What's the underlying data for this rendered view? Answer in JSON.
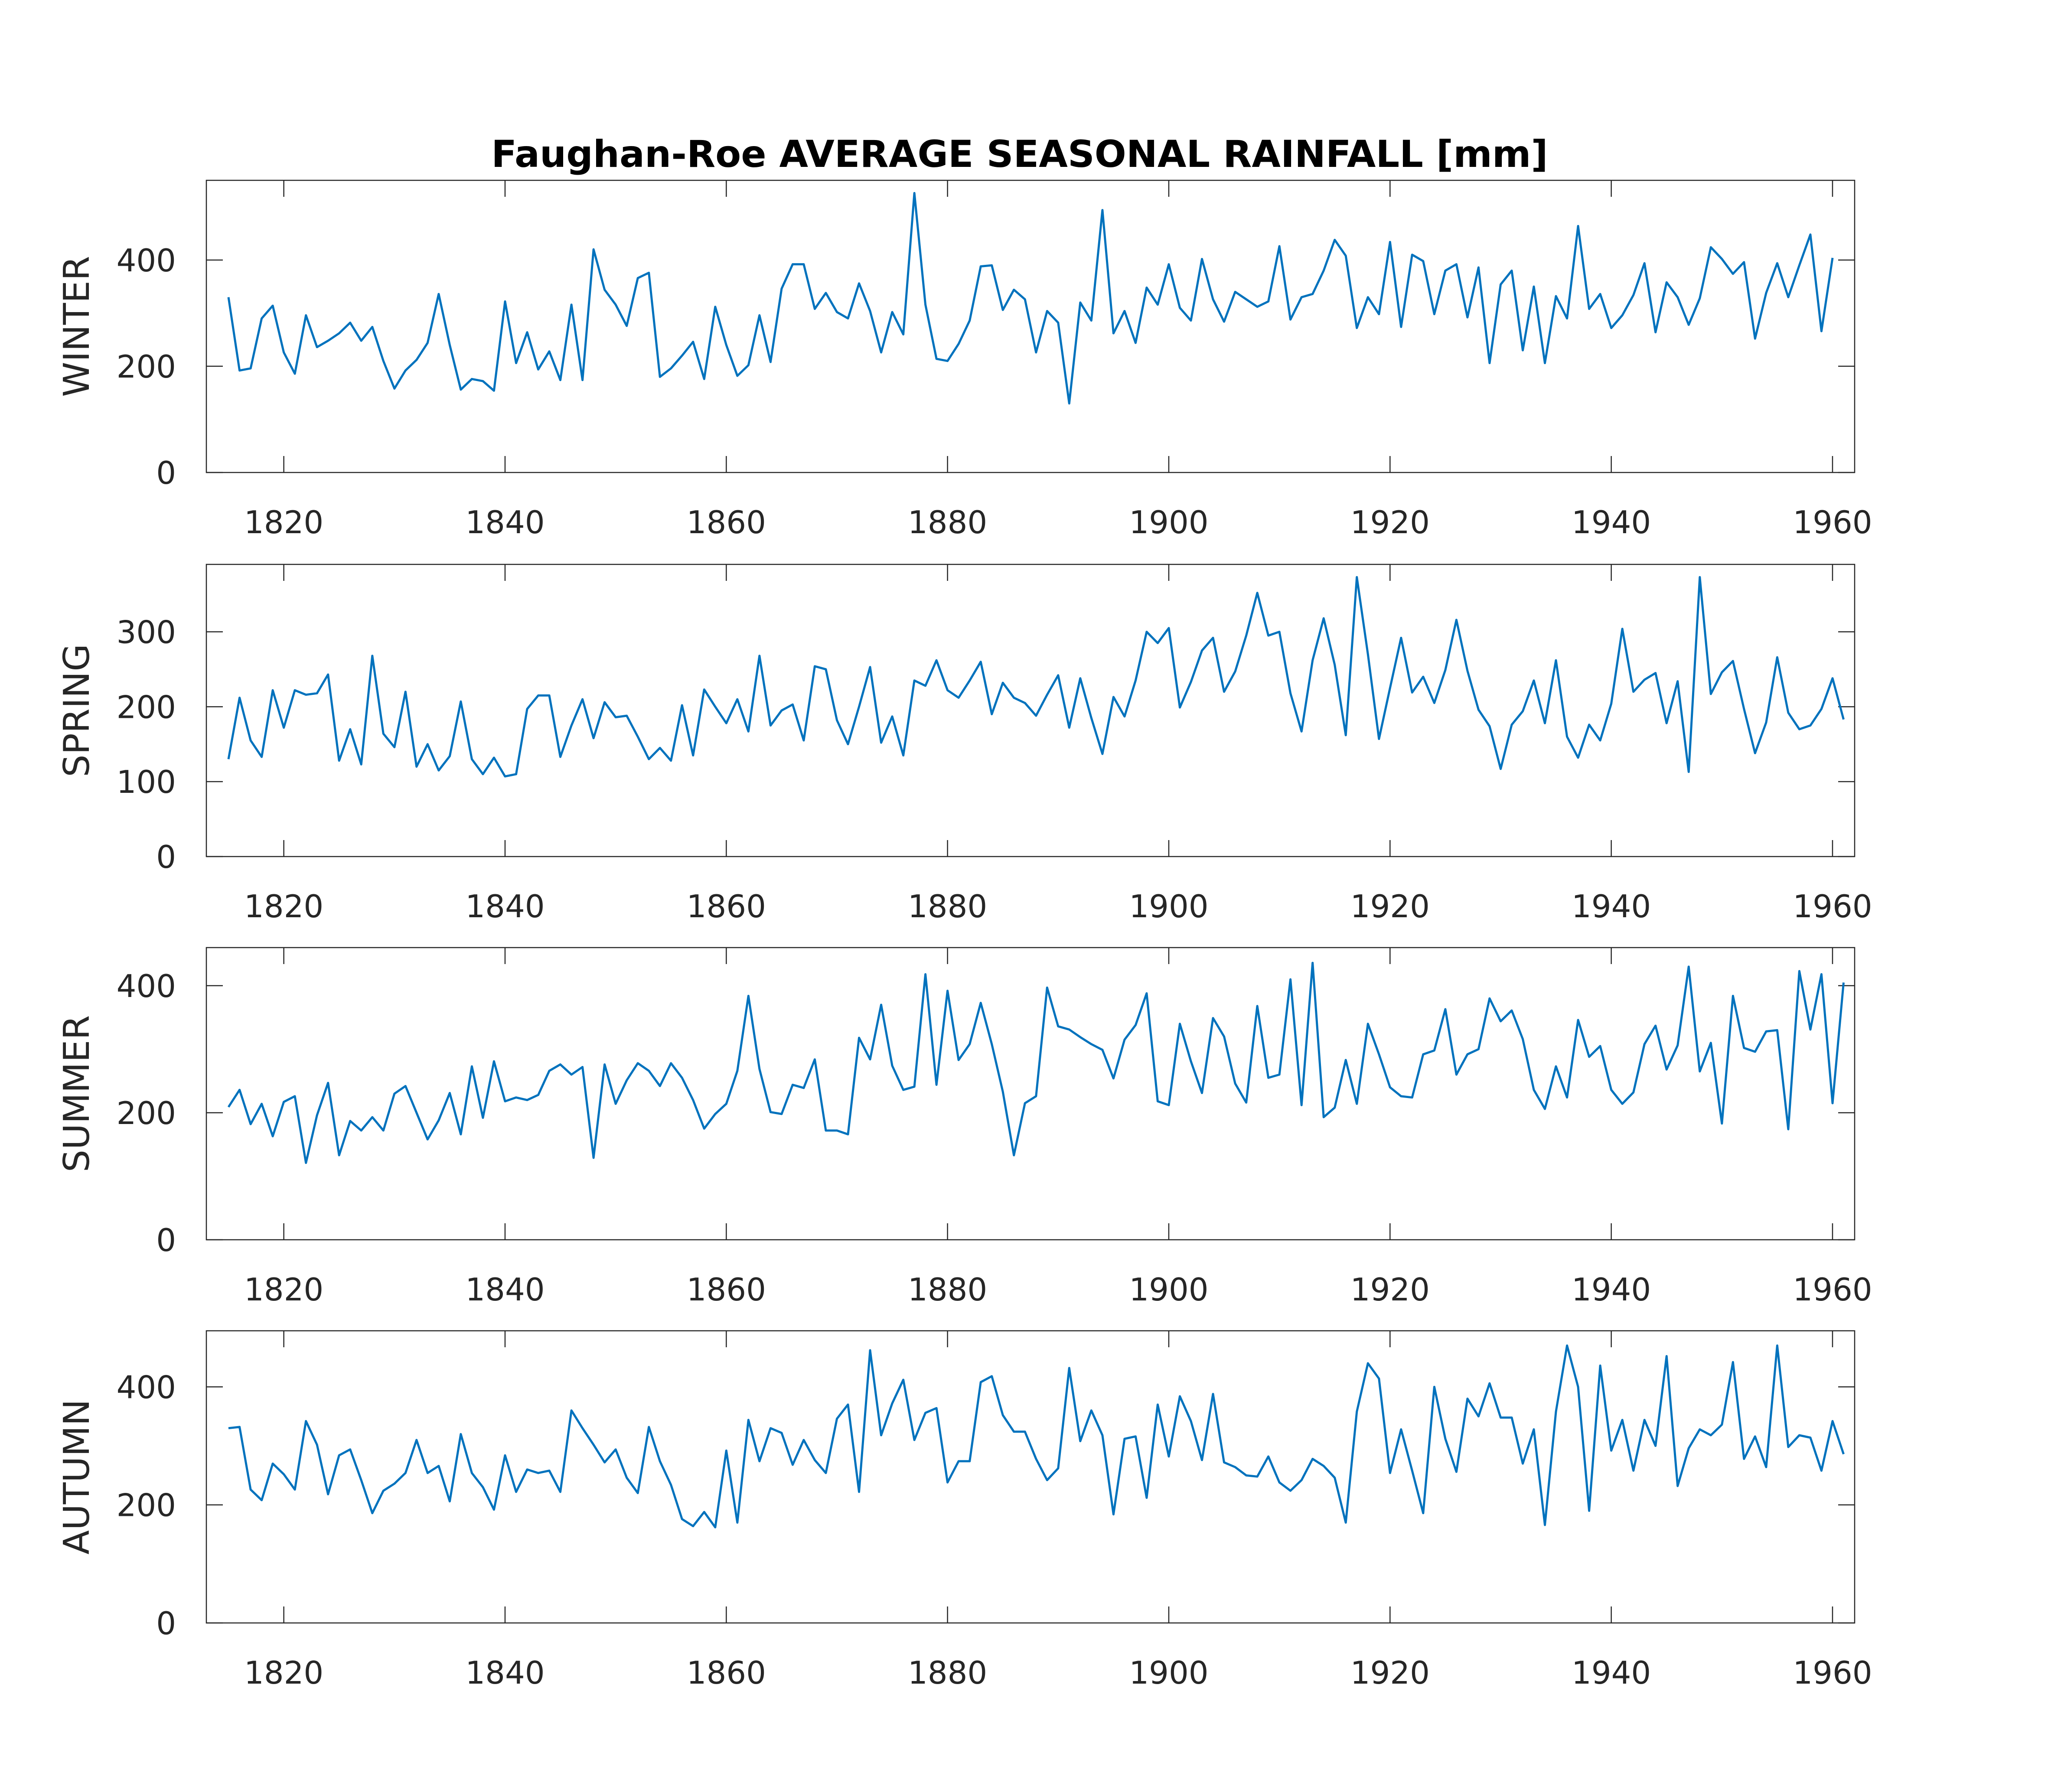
{
  "chart_data": {
    "type": "line",
    "title": "Faughan-Roe AVERAGE SEASONAL RAINFALL [mm]",
    "x_start": 1815,
    "x_step": 1,
    "xlim": [
      1813,
      1962
    ],
    "xticks": [
      1820,
      1840,
      1860,
      1880,
      1900,
      1920,
      1940,
      1960
    ],
    "line_color": "#0072BD",
    "grid": false,
    "panels": [
      {
        "ylabel": "WINTER",
        "ylim": [
          0,
          550
        ],
        "yticks": [
          0,
          200,
          400
        ],
        "values": [
          330,
          192,
          196,
          290,
          314,
          226,
          186,
          296,
          236,
          248,
          262,
          282,
          248,
          274,
          210,
          158,
          192,
          212,
          244,
          336,
          240,
          156,
          176,
          172,
          154,
          322,
          206,
          264,
          194,
          228,
          174,
          316,
          174,
          420,
          344,
          316,
          276,
          366,
          376,
          180,
          196,
          220,
          246,
          176,
          312,
          240,
          182,
          202,
          296,
          208,
          346,
          392,
          392,
          308,
          338,
          302,
          290,
          356,
          304,
          226,
          302,
          260,
          526,
          316,
          214,
          210,
          242,
          286,
          388,
          390,
          306,
          344,
          326,
          226,
          304,
          282,
          130,
          320,
          286,
          494,
          262,
          304,
          244,
          348,
          316,
          392,
          310,
          286,
          402,
          326,
          284,
          340,
          326,
          312,
          322,
          426,
          288,
          330,
          336,
          380,
          438,
          408,
          272,
          330,
          298,
          434,
          274,
          410,
          398,
          298,
          380,
          392,
          292,
          386,
          206,
          354,
          380,
          230,
          350,
          206,
          332,
          290,
          464,
          308,
          336,
          272,
          296,
          334,
          394,
          264,
          358,
          330,
          278,
          328,
          424,
          402,
          374,
          396,
          252,
          338,
          394,
          330,
          390,
          448,
          266,
          404
        ]
      },
      {
        "ylabel": "SPRING",
        "ylim": [
          0,
          390
        ],
        "yticks": [
          0,
          100,
          200,
          300
        ],
        "values": [
          130,
          212,
          155,
          133,
          222,
          172,
          222,
          216,
          218,
          243,
          128,
          170,
          123,
          268,
          164,
          146,
          220,
          120,
          150,
          115,
          134,
          207,
          130,
          110,
          132,
          107,
          110,
          197,
          215,
          215,
          133,
          175,
          210,
          158,
          206,
          186,
          188,
          160,
          130,
          145,
          128,
          202,
          135,
          223,
          200,
          178,
          210,
          167,
          268,
          175,
          195,
          203,
          155,
          254,
          250,
          182,
          150,
          200,
          253,
          152,
          187,
          135,
          235,
          228,
          262,
          222,
          212,
          235,
          260,
          190,
          232,
          212,
          205,
          188,
          216,
          242,
          172,
          238,
          185,
          137,
          213,
          187,
          235,
          300,
          285,
          305,
          199,
          233,
          275,
          292,
          220,
          247,
          295,
          352,
          295,
          300,
          218,
          167,
          262,
          318,
          256,
          162,
          373,
          270,
          157,
          225,
          292,
          219,
          240,
          205,
          249,
          316,
          248,
          196,
          174,
          117,
          176,
          194,
          235,
          178,
          262,
          160,
          132,
          176,
          155,
          204,
          304,
          220,
          236,
          245,
          178,
          234,
          113,
          373,
          217,
          246,
          261,
          197,
          138,
          179,
          266,
          192,
          170,
          175,
          197,
          238,
          183
        ]
      },
      {
        "ylabel": "SUMMER",
        "ylim": [
          0,
          460
        ],
        "yticks": [
          0,
          200,
          400
        ],
        "values": [
          209,
          236,
          182,
          214,
          163,
          217,
          226,
          121,
          196,
          247,
          133,
          187,
          172,
          193,
          172,
          230,
          242,
          200,
          158,
          188,
          231,
          166,
          273,
          192,
          281,
          218,
          224,
          220,
          228,
          266,
          276,
          260,
          272,
          129,
          276,
          214,
          251,
          278,
          266,
          242,
          278,
          255,
          220,
          175,
          198,
          214,
          266,
          384,
          269,
          201,
          198,
          244,
          239,
          284,
          172,
          172,
          166,
          318,
          284,
          370,
          274,
          236,
          241,
          418,
          244,
          392,
          283,
          308,
          373,
          308,
          233,
          133,
          215,
          226,
          397,
          336,
          331,
          319,
          308,
          299,
          254,
          315,
          338,
          388,
          218,
          212,
          340,
          281,
          231,
          349,
          320,
          246,
          216,
          368,
          255,
          260,
          410,
          212,
          436,
          193,
          208,
          283,
          214,
          340,
          292,
          240,
          226,
          224,
          292,
          298,
          363,
          260,
          292,
          300,
          380,
          344,
          361,
          316,
          236,
          206,
          273,
          224,
          346,
          288,
          305,
          236,
          214,
          232,
          308,
          337,
          268,
          306,
          430,
          265,
          310,
          183,
          384,
          302,
          296,
          328,
          330,
          174,
          423,
          331,
          418,
          215,
          405
        ]
      },
      {
        "ylabel": "AUTUMN",
        "ylim": [
          0,
          495
        ],
        "yticks": [
          0,
          200,
          400
        ],
        "values": [
          330,
          332,
          226,
          208,
          270,
          252,
          226,
          342,
          302,
          218,
          284,
          294,
          242,
          186,
          224,
          236,
          254,
          310,
          254,
          266,
          206,
          320,
          254,
          230,
          192,
          284,
          222,
          260,
          254,
          258,
          222,
          360,
          330,
          302,
          272,
          294,
          246,
          220,
          332,
          274,
          234,
          176,
          164,
          188,
          162,
          292,
          170,
          344,
          274,
          330,
          322,
          268,
          310,
          276,
          254,
          346,
          370,
          222,
          462,
          318,
          372,
          412,
          310,
          356,
          364,
          238,
          274,
          274,
          408,
          418,
          352,
          324,
          324,
          278,
          242,
          262,
          432,
          308,
          360,
          318,
          184,
          312,
          316,
          212,
          370,
          282,
          384,
          342,
          276,
          388,
          272,
          264,
          250,
          248,
          282,
          238,
          224,
          242,
          278,
          266,
          246,
          170,
          358,
          440,
          414,
          254,
          328,
          258,
          186,
          400,
          312,
          256,
          380,
          350,
          406,
          348,
          348,
          270,
          328,
          166,
          358,
          470,
          400,
          190,
          436,
          292,
          344,
          258,
          344,
          300,
          452,
          232,
          296,
          328,
          318,
          336,
          442,
          278,
          316,
          264,
          470,
          298,
          318,
          314,
          258,
          342,
          286
        ]
      }
    ]
  }
}
